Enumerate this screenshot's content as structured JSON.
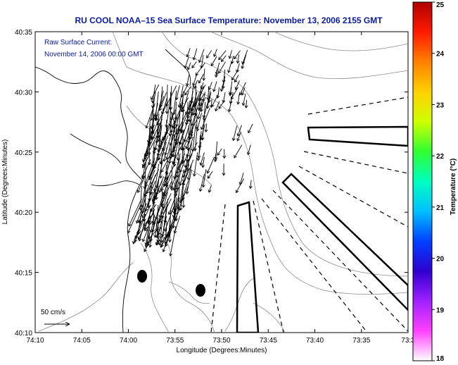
{
  "title": "RU COOL  NOAA–15  Sea Surface Temperature:  November 13, 2006 2155 GMT",
  "legend": {
    "line1": "Raw Surface Current:",
    "line2": "November 14, 2006 00:00 GMT",
    "scale_label": "50 cm/s"
  },
  "axes": {
    "xlabel": "Longitude (Degrees:Minutes)",
    "ylabel": "Latitude (Degrees:Minutes)",
    "xticks": [
      "74:10",
      "74:05",
      "74:00",
      "73:55",
      "73:50",
      "73:45",
      "73:40",
      "73:35",
      "73:3"
    ],
    "yticks": [
      "40:35",
      "40:30",
      "40:25",
      "40:20",
      "40:15",
      "40:10"
    ]
  },
  "colorbar": {
    "label": "Temperature (°C)",
    "ticks": [
      "25",
      "24",
      "23",
      "22",
      "21",
      "20",
      "19",
      "18"
    ],
    "colors": [
      "#b00000",
      "#ff1a00",
      "#ff8000",
      "#ffd000",
      "#cfff00",
      "#30ff30",
      "#00ffc0",
      "#00c0ff",
      "#0040ff",
      "#3000d0",
      "#a020ff",
      "#ff40ff",
      "#ffffff"
    ]
  },
  "chart_data": {
    "type": "map",
    "xlim": [
      "74:10",
      "73:30"
    ],
    "ylim": [
      "40:10",
      "40:35"
    ],
    "color_range": [
      18,
      25
    ],
    "features": [
      "coastline",
      "bathymetry contours",
      "surface current vectors",
      "two black dots",
      "dashed and outlined sector wedges"
    ]
  }
}
